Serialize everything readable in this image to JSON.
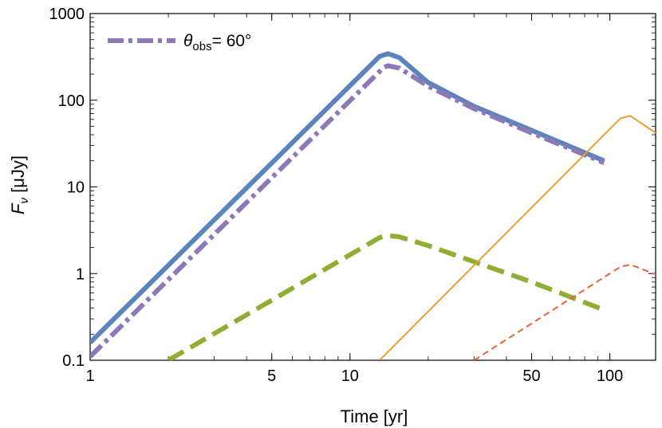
{
  "chart_data": {
    "type": "line",
    "xlabel": "Time [yr]",
    "ylabel_main": "F",
    "ylabel_sub": "ν",
    "ylabel_unit": " [μJy]",
    "xscale": "log",
    "yscale": "log",
    "xlim": [
      1,
      150
    ],
    "ylim": [
      0.1,
      1000
    ],
    "grid": false,
    "x_ticks": [
      {
        "value": 1,
        "label": "1"
      },
      {
        "value": 5,
        "label": "5"
      },
      {
        "value": 10,
        "label": "10"
      },
      {
        "value": 50,
        "label": "50"
      },
      {
        "value": 100,
        "label": "100"
      }
    ],
    "y_ticks": [
      {
        "value": 0.1,
        "label": "0.1"
      },
      {
        "value": 1,
        "label": "1"
      },
      {
        "value": 10,
        "label": "10"
      },
      {
        "value": 100,
        "label": "100"
      },
      {
        "value": 1000,
        "label": "1000"
      }
    ],
    "legend": {
      "placement": "top-left",
      "symbol": "θ",
      "subscript": "obs",
      "value": "= 60°",
      "series_index": 1
    },
    "series": [
      {
        "color": "#5b84be",
        "width": 6,
        "dash": "",
        "x": [
          1,
          13,
          14,
          15.5,
          20,
          30,
          50,
          95
        ],
        "y": [
          0.16,
          320,
          345,
          310,
          160,
          85,
          45,
          20
        ]
      },
      {
        "color": "#8e79b8",
        "width": 6,
        "dash": "20 6 5 6",
        "x": [
          1,
          13.5,
          14,
          15.5,
          20,
          30,
          50,
          95
        ],
        "y": [
          0.11,
          240,
          250,
          235,
          145,
          80,
          42,
          19
        ]
      },
      {
        "color": "#8fae33",
        "width": 6,
        "dash": "22 10",
        "x": [
          2,
          13,
          14,
          15.5,
          20,
          50,
          95
        ],
        "y": [
          0.1,
          2.6,
          2.75,
          2.65,
          2.1,
          0.8,
          0.38
        ]
      },
      {
        "color": "#e8a02c",
        "width": 2,
        "dash": "",
        "x": [
          13,
          110,
          120,
          150
        ],
        "y": [
          0.1,
          62,
          66,
          42
        ]
      },
      {
        "color": "#e8643c",
        "width": 2,
        "dash": "8 5",
        "x": [
          30,
          110,
          120,
          150
        ],
        "y": [
          0.1,
          1.2,
          1.27,
          0.98
        ]
      }
    ]
  }
}
